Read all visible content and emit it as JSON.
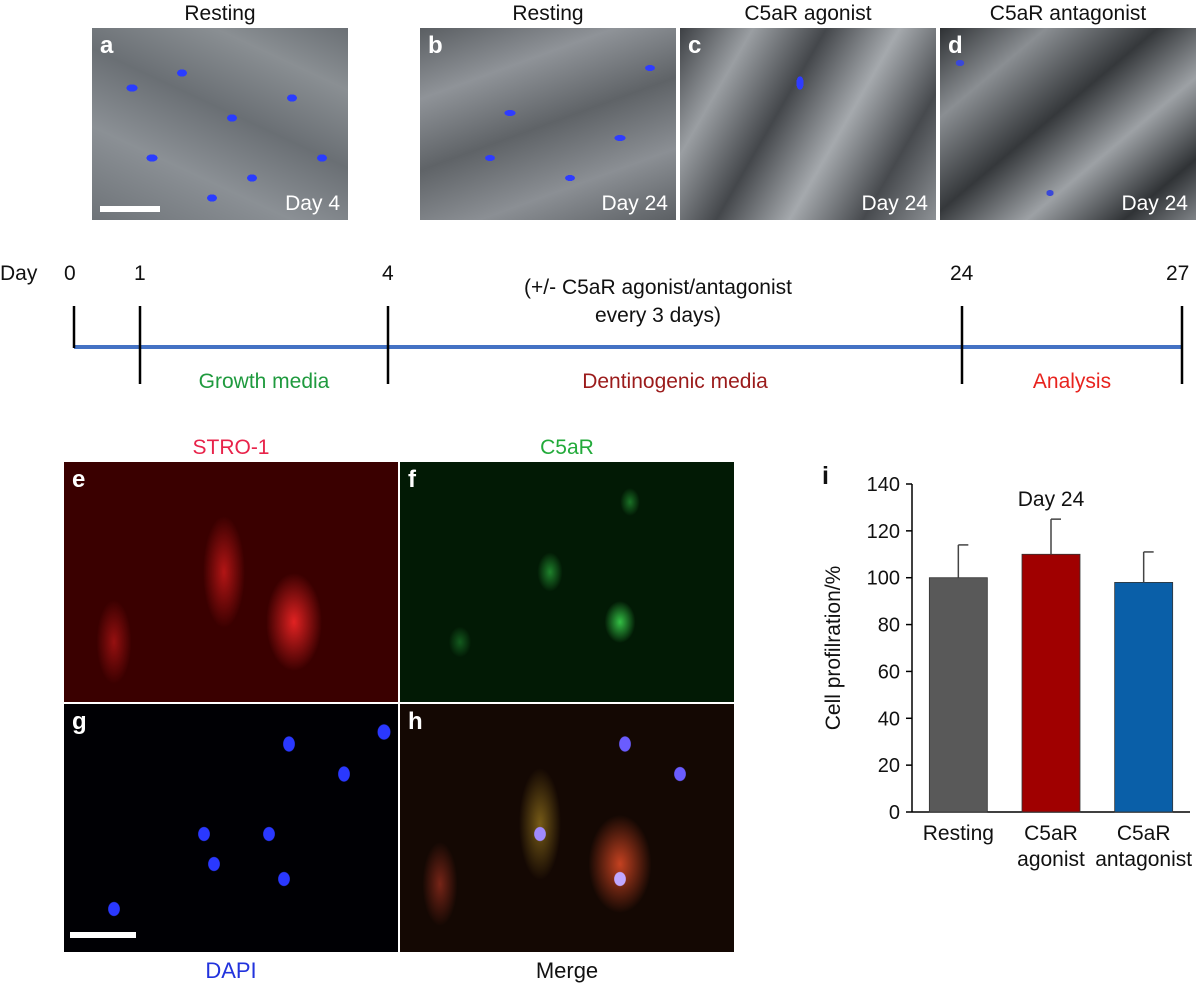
{
  "top_row": {
    "panel_a": {
      "title": "Resting",
      "letter": "a",
      "day": "Day 4"
    },
    "panel_b": {
      "title": "Resting",
      "letter": "b",
      "day": "Day 24"
    },
    "panel_c": {
      "title": "C5aR agonist",
      "letter": "c",
      "day": "Day 24"
    },
    "panel_d": {
      "title": "C5aR antagonist",
      "letter": "d",
      "day": "Day 24"
    }
  },
  "timeline": {
    "axis_label": "Day",
    "ticks": [
      "0",
      "1",
      "4",
      "24",
      "27"
    ],
    "treatment_line1": "(+/- C5aR agonist/antagonist",
    "treatment_line2": "every 3 days)",
    "phases": [
      {
        "label": "Growth media",
        "color": "#1f9a3e"
      },
      {
        "label": "Dentinogenic media",
        "color": "#9b1b1b"
      },
      {
        "label": "Analysis",
        "color": "#e8231e"
      }
    ],
    "line_color": "#4472c4"
  },
  "fluor_row": {
    "panel_e": {
      "title": "STRO-1",
      "letter": "e",
      "color": "#e8234a"
    },
    "panel_f": {
      "title": "C5aR",
      "letter": "f",
      "color": "#22aa3a"
    },
    "panel_g": {
      "title": "DAPI",
      "letter": "g",
      "color": "#2233dd"
    },
    "panel_h": {
      "title": "Merge",
      "letter": "h"
    }
  },
  "chart_data": {
    "type": "bar",
    "panel_letter": "i",
    "annotation": "Day 24",
    "categories": [
      "Resting",
      "C5aR agonist",
      "C5aR antagonist"
    ],
    "category_lines": [
      [
        "Resting"
      ],
      [
        "C5aR",
        "agonist"
      ],
      [
        "C5aR",
        "antagonist"
      ]
    ],
    "values": [
      100,
      110,
      98
    ],
    "errors": [
      14,
      15,
      13
    ],
    "colors": [
      "#595959",
      "#a00000",
      "#0a5fa8"
    ],
    "ylabel": "Cell profilration/%",
    "ylim": [
      0,
      140
    ],
    "yticks": [
      "0",
      "20",
      "40",
      "60",
      "80",
      "100",
      "120",
      "140"
    ],
    "grid": false
  }
}
